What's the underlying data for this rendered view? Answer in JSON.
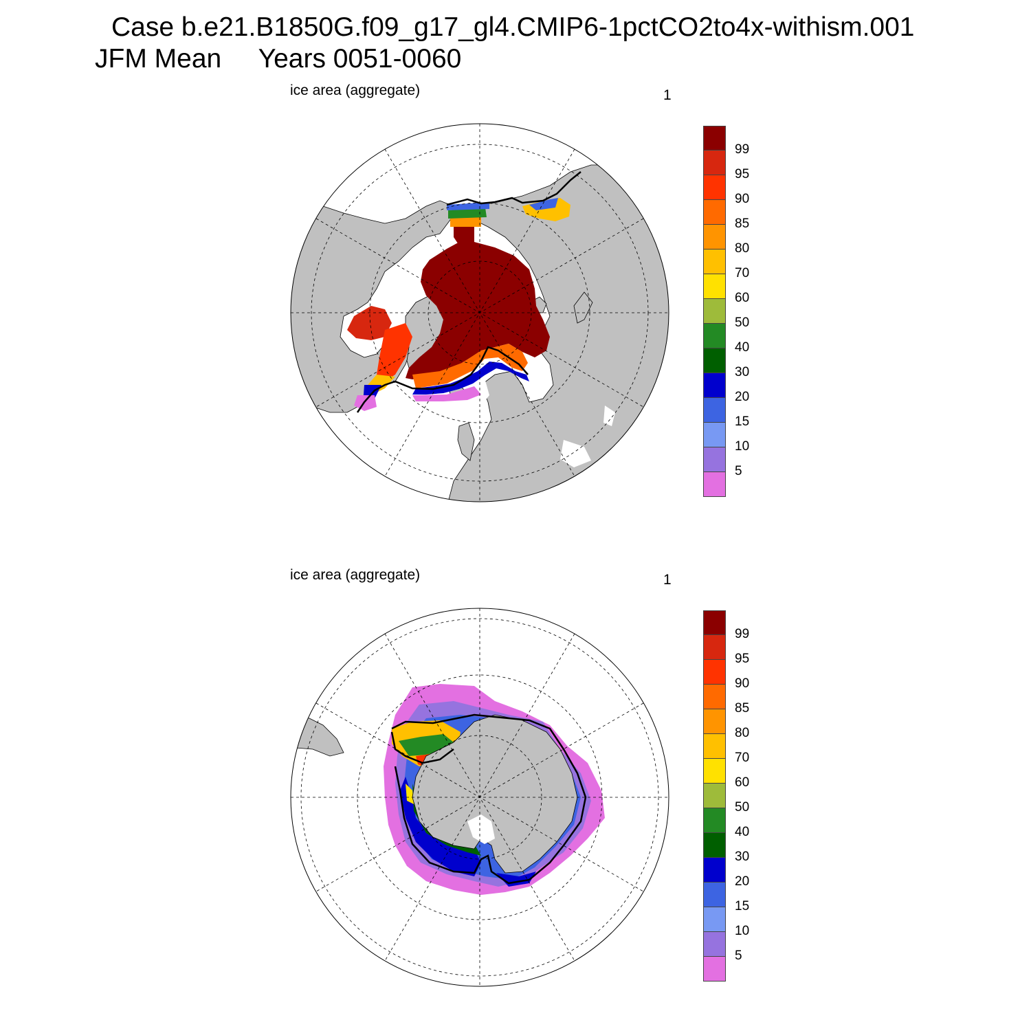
{
  "title": {
    "line1": "Case b.e21.B1850G.f09_g17_gl4.CMIP6-1pctCO2to4x-withism.001",
    "line2": "JFM Mean     Years 0051-0060"
  },
  "panels": [
    {
      "name": "north",
      "label": "ice area  (aggregate)",
      "number": "1",
      "hemisphere": "north-polar-stereographic"
    },
    {
      "name": "south",
      "label": "ice area  (aggregate)",
      "number": "1",
      "hemisphere": "south-polar-stereographic"
    }
  ],
  "colorbar": {
    "colors": [
      "#8b0000",
      "#d7270f",
      "#ff3300",
      "#ff6a00",
      "#ff9400",
      "#ffc000",
      "#ffe100",
      "#9ebb3a",
      "#238a24",
      "#005f00",
      "#0000cd",
      "#3d64e2",
      "#7899f3",
      "#9673df",
      "#e370e1"
    ],
    "labels": [
      "99",
      "95",
      "90",
      "85",
      "80",
      "70",
      "60",
      "50",
      "40",
      "30",
      "20",
      "15",
      "10",
      "5"
    ]
  },
  "map_colors": {
    "land": "#c0c0c0",
    "ocean": "#ffffff",
    "ice_edge_line": "#000000",
    "grid": "#000000"
  }
}
